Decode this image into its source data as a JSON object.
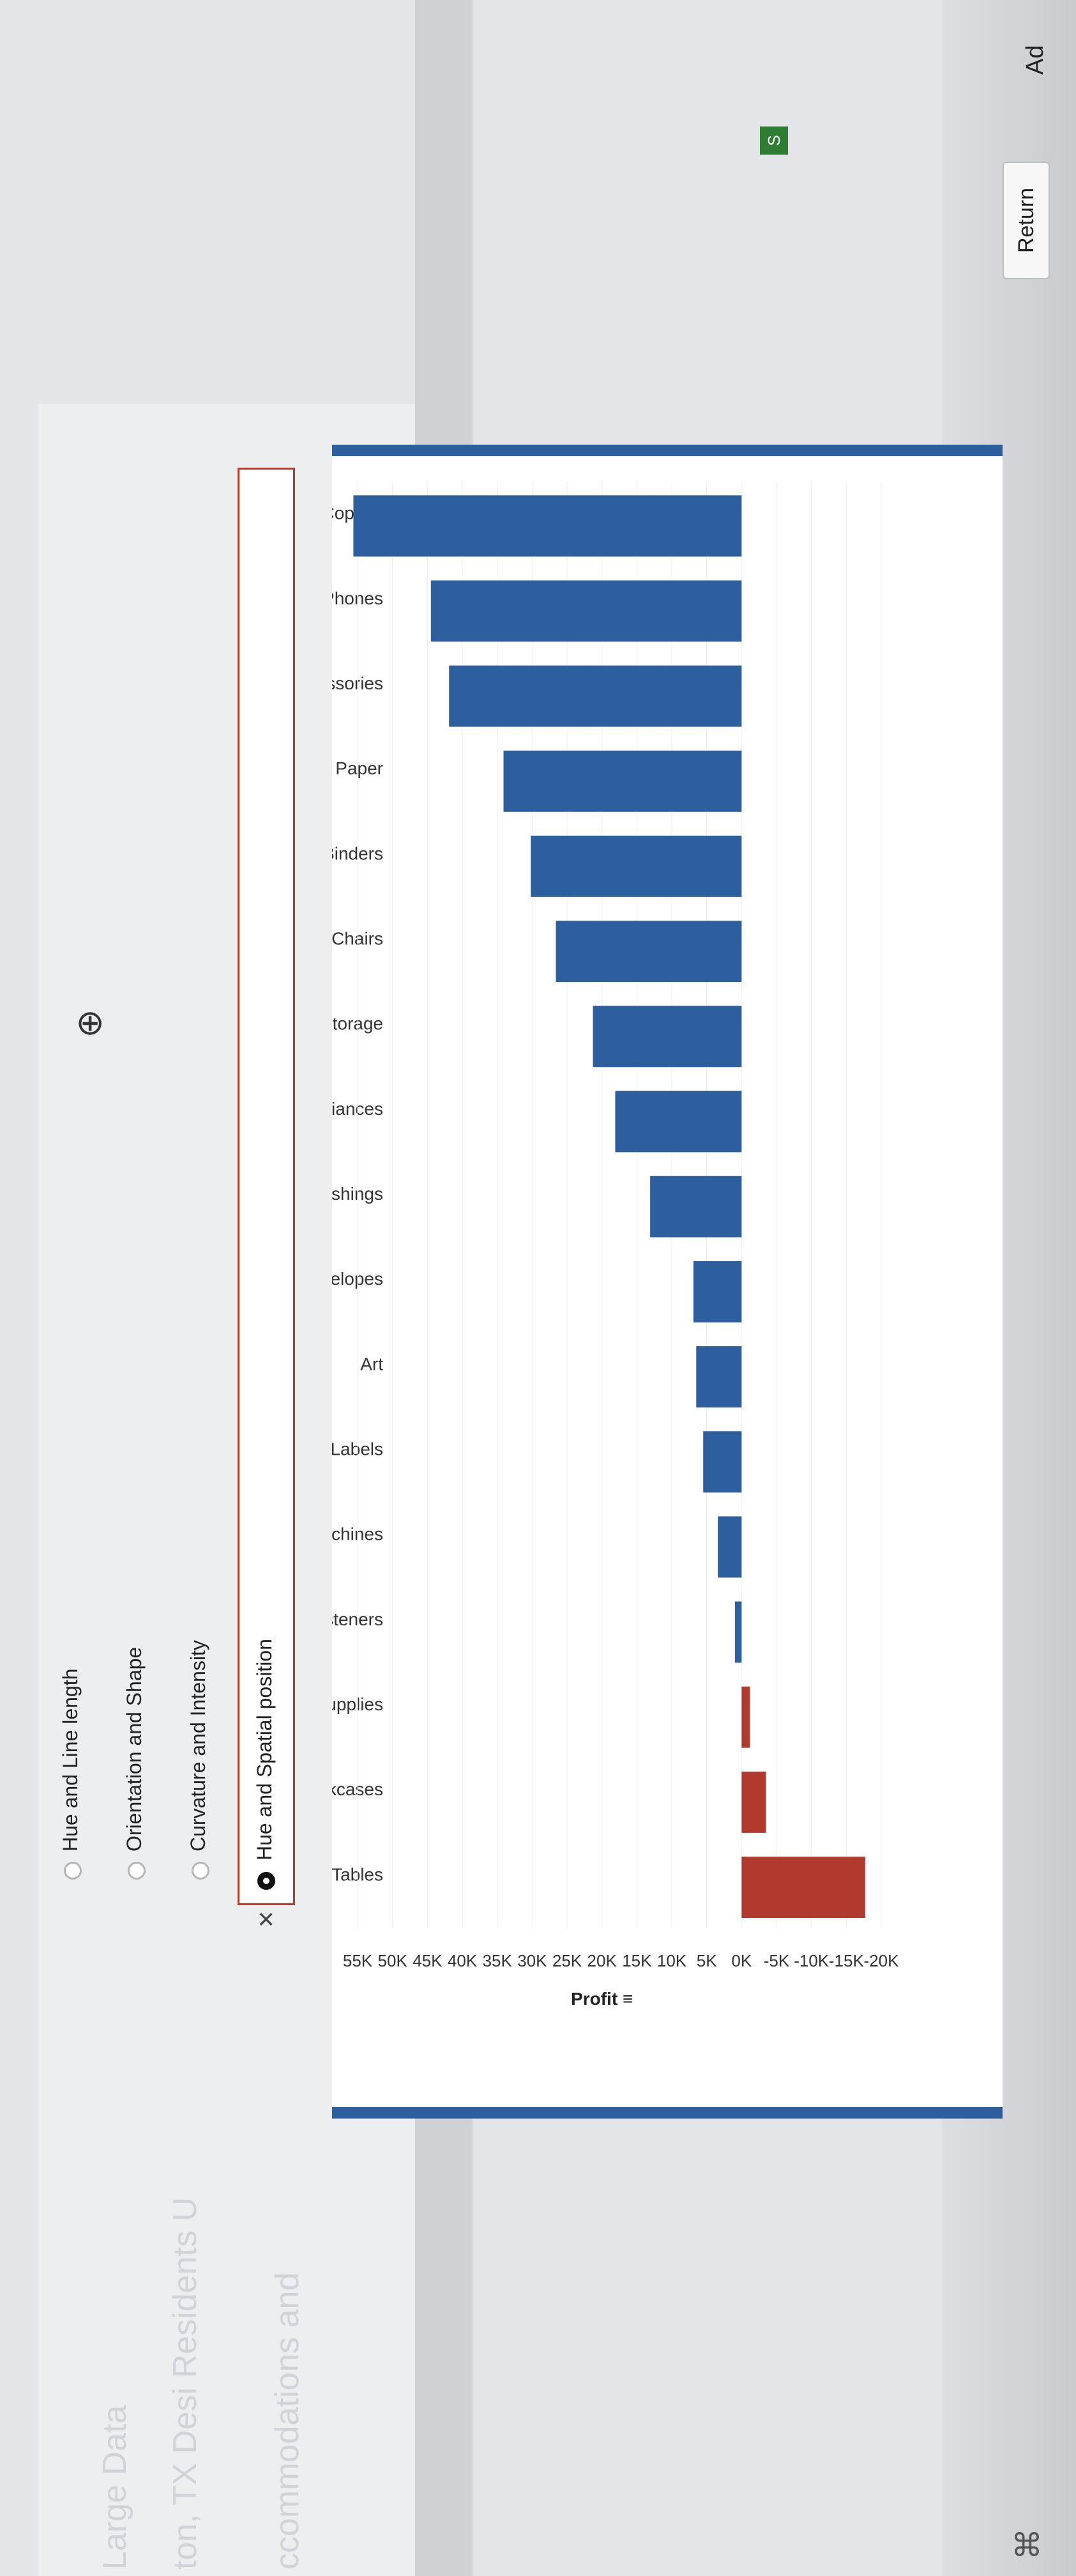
{
  "header": {
    "return_label": "Return",
    "add_label": "Ad",
    "badge_label": "S"
  },
  "background": {
    "ghost_lines": [
      "ccommodations and",
      "ton, TX Desi Residents U",
      "Large Data"
    ]
  },
  "question": {
    "options": [
      {
        "label": "Hue and Spatial position",
        "selected": true,
        "marked_incorrect": true
      },
      {
        "label": "Curvature and Intensity",
        "selected": false
      },
      {
        "label": "Orientation and Shape",
        "selected": false
      },
      {
        "label": "Hue and Line length",
        "selected": false
      }
    ]
  },
  "colors": {
    "positive": "#2d5e9e",
    "negative": "#b03a2e",
    "frame": "#2d5e9e",
    "error_border": "#c0392b"
  },
  "chart_data": {
    "type": "bar",
    "orientation": "horizontal",
    "title": "",
    "xlabel": "Profit",
    "ylabel": "",
    "categories": [
      "Copiers",
      "Phones",
      "Accessories",
      "Paper",
      "Binders",
      "Chairs",
      "Storage",
      "Appliances",
      "Furnishings",
      "Envelopes",
      "Art",
      "Labels",
      "Machines",
      "Fasteners",
      "Supplies",
      "Bookcases",
      "Tables"
    ],
    "values": [
      55600,
      44500,
      41900,
      34100,
      30200,
      26600,
      21300,
      18100,
      13100,
      6900,
      6500,
      5500,
      3400,
      950,
      -1200,
      -3500,
      -17700
    ],
    "xlim": [
      -20000,
      55000
    ],
    "xticks": [
      -20000,
      -15000,
      -10000,
      -5000,
      0,
      5000,
      10000,
      15000,
      20000,
      25000,
      30000,
      35000,
      40000,
      45000,
      50000,
      55000
    ],
    "xtick_labels": [
      "-20K",
      "-15K",
      "-10K",
      "-5K",
      "0K",
      "5K",
      "10K",
      "15K",
      "20K",
      "25K",
      "30K",
      "35K",
      "40K",
      "45K",
      "50K",
      "55K"
    ],
    "sort_indicator": "≡"
  }
}
